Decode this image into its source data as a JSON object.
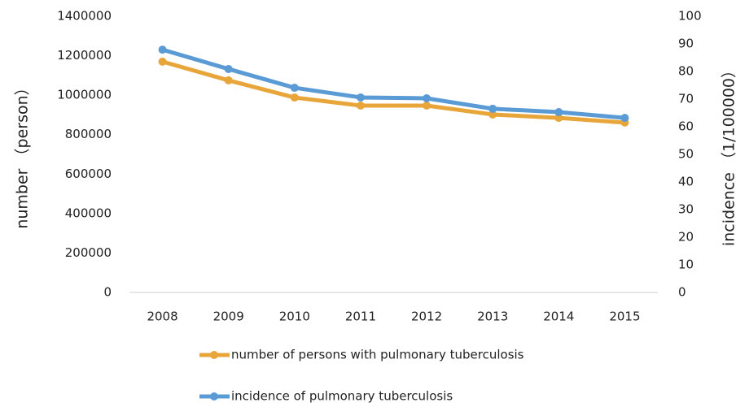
{
  "chart_data": {
    "type": "line",
    "categories": [
      "2008",
      "2009",
      "2010",
      "2011",
      "2012",
      "2013",
      "2014",
      "2015"
    ],
    "series": [
      {
        "name": "number of persons with pulmonary tuberculosis",
        "color": "#e8a63a",
        "values": [
          1170000,
          1075000,
          988000,
          947000,
          947000,
          902000,
          885000,
          861000
        ]
      },
      {
        "name": "incidence of pulmonary tuberculosis",
        "color": "#5b9bd5",
        "axis": "y2",
        "values": [
          87.9,
          80.9,
          74.1,
          70.6,
          70.3,
          66.5,
          65.3,
          63.2
        ]
      }
    ],
    "ylabel": "number （person）",
    "y2label": "incidence （1/100000）",
    "ylim": [
      0,
      1400000
    ],
    "yticks": [
      0,
      200000,
      400000,
      600000,
      800000,
      1000000,
      1200000,
      1400000
    ],
    "y2lim": [
      0,
      100
    ],
    "y2ticks": [
      0,
      10,
      20,
      30,
      40,
      50,
      60,
      70,
      80,
      90,
      100
    ],
    "legend": "bottom"
  }
}
